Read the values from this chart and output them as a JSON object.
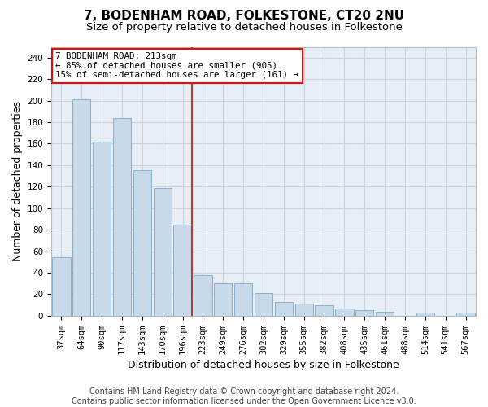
{
  "title": "7, BODENHAM ROAD, FOLKESTONE, CT20 2NU",
  "subtitle": "Size of property relative to detached houses in Folkestone",
  "xlabel": "Distribution of detached houses by size in Folkestone",
  "ylabel": "Number of detached properties",
  "categories": [
    "37sqm",
    "64sqm",
    "90sqm",
    "117sqm",
    "143sqm",
    "170sqm",
    "196sqm",
    "223sqm",
    "249sqm",
    "276sqm",
    "302sqm",
    "329sqm",
    "355sqm",
    "382sqm",
    "408sqm",
    "435sqm",
    "461sqm",
    "488sqm",
    "514sqm",
    "541sqm",
    "567sqm"
  ],
  "values": [
    54,
    201,
    162,
    184,
    135,
    119,
    85,
    38,
    30,
    30,
    21,
    13,
    11,
    10,
    7,
    5,
    4,
    0,
    3,
    0,
    3
  ],
  "bar_color": "#c8d9ea",
  "bar_edge_color": "#8ab0cc",
  "vline_index": 6,
  "annotation_line1": "7 BODENHAM ROAD: 213sqm",
  "annotation_line2": "← 85% of detached houses are smaller (905)",
  "annotation_line3": "15% of semi-detached houses are larger (161) →",
  "annotation_box_color": "white",
  "annotation_box_edge_color": "red",
  "vline_color": "#c0392b",
  "ylim": [
    0,
    250
  ],
  "yticks": [
    0,
    20,
    40,
    60,
    80,
    100,
    120,
    140,
    160,
    180,
    200,
    220,
    240
  ],
  "footer1": "Contains HM Land Registry data © Crown copyright and database right 2024.",
  "footer2": "Contains public sector information licensed under the Open Government Licence v3.0.",
  "bg_color": "#e8eef5",
  "grid_color": "#c8d4de",
  "title_fontsize": 11,
  "subtitle_fontsize": 9.5,
  "axis_label_fontsize": 9,
  "tick_fontsize": 7.5,
  "footer_fontsize": 7
}
